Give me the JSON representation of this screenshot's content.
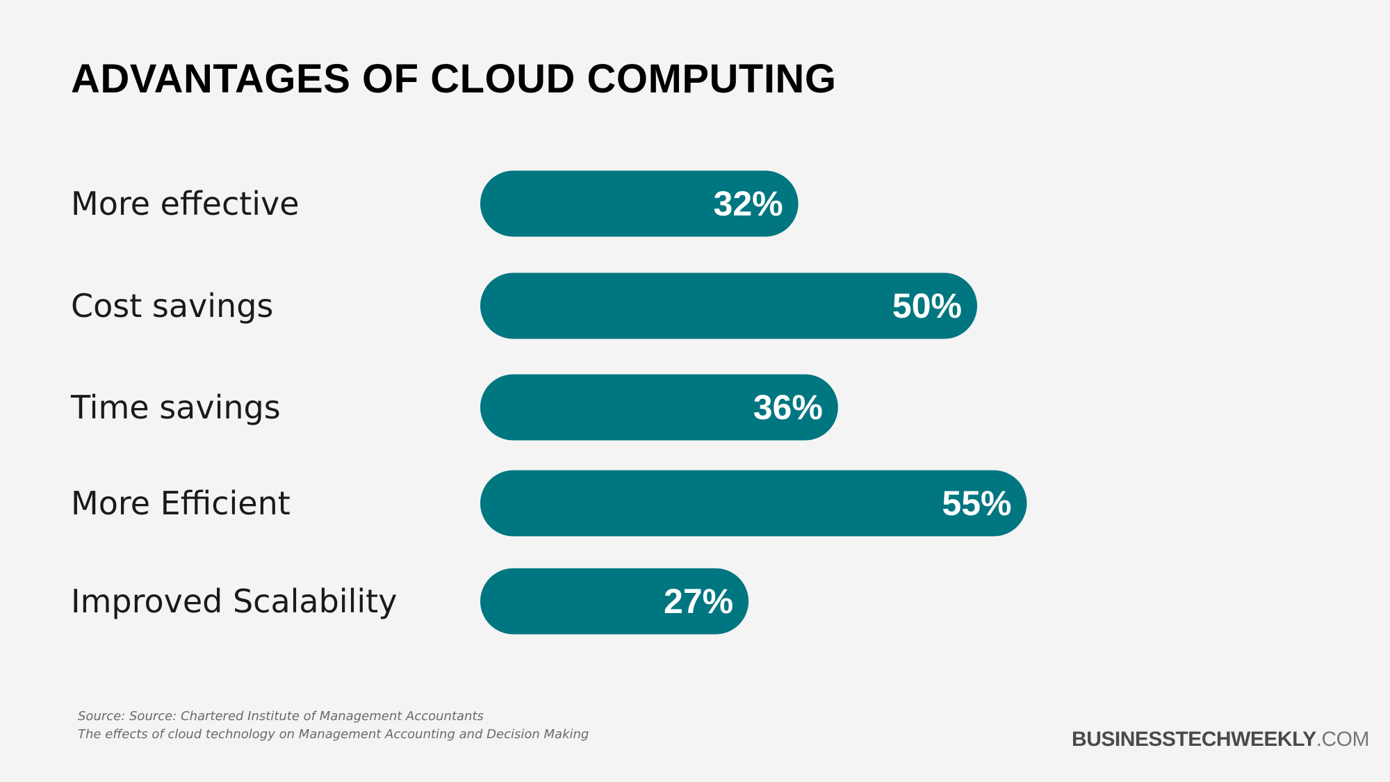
{
  "chart_data": {
    "type": "bar",
    "orientation": "horizontal",
    "title": "ADVANTAGES OF CLOUD COMPUTING",
    "categories": [
      "More effective",
      "Cost savings",
      "Time savings",
      "More Efficient",
      "Improved Scalability"
    ],
    "values": [
      32,
      50,
      36,
      55,
      27
    ],
    "value_labels": [
      "32%",
      "50%",
      "36%",
      "55%",
      "27%"
    ],
    "unit": "%",
    "bar_color": "#007680",
    "value_label_color": "#ffffff",
    "grid": false,
    "legend": "none"
  },
  "source": {
    "line1": "Source: Source: Chartered Institute of Management Accountants",
    "line2": "The effects of cloud technology on Management Accounting and Decision Making"
  },
  "brand": {
    "name": "BUSINESSTECHWEEKLY",
    "suffix": ".COM"
  },
  "colors": {
    "background": "#f4f4f4",
    "accent": "#007680"
  }
}
